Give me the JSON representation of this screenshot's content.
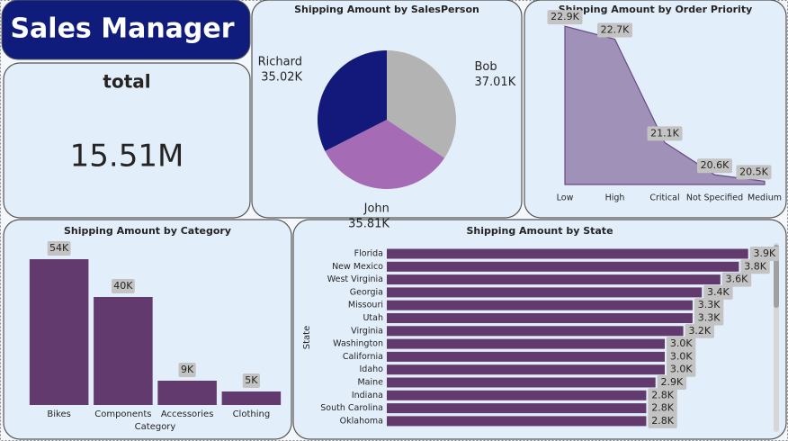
{
  "header": {
    "title": "Sales Manager"
  },
  "kpi": {
    "label": "total",
    "value": "15.51M"
  },
  "chart_data": [
    {
      "type": "pie",
      "title": "Shipping Amount by SalesPerson",
      "categories": [
        "Bob",
        "John",
        "Richard"
      ],
      "values": [
        37.01,
        35.81,
        35.02
      ],
      "value_labels": [
        "37.01K",
        "35.81K",
        "35.02K"
      ],
      "colors": [
        "#b3b3b3",
        "#a66bb5",
        "#12197a"
      ]
    },
    {
      "type": "area",
      "title": "Shipping Amount by Order Priority",
      "categories": [
        "Low",
        "High",
        "Critical",
        "Not Specified",
        "Medium"
      ],
      "values": [
        22.9,
        22.7,
        21.1,
        20.6,
        20.5
      ],
      "value_labels": [
        "22.9K",
        "22.7K",
        "21.1K",
        "20.6K",
        "20.5K"
      ],
      "color": "#9b8bb4",
      "ylim": [
        20.45,
        23.0
      ]
    },
    {
      "type": "bar",
      "title": "Shipping Amount by Category",
      "xlabel": "Category",
      "categories": [
        "Bikes",
        "Components",
        "Accessories",
        "Clothing"
      ],
      "values": [
        54,
        40,
        9,
        5
      ],
      "value_labels": [
        "54K",
        "40K",
        "9K",
        "5K"
      ],
      "color": "#633a6e",
      "ylim": [
        0,
        60
      ]
    },
    {
      "type": "hbar",
      "title": "Shipping Amount by State",
      "ylabel": "State",
      "categories": [
        "Florida",
        "New Mexico",
        "West Virginia",
        "Georgia",
        "Missouri",
        "Utah",
        "Virginia",
        "Washington",
        "California",
        "Idaho",
        "Maine",
        "Indiana",
        "South Carolina",
        "Oklahoma"
      ],
      "values": [
        3.9,
        3.8,
        3.6,
        3.4,
        3.3,
        3.3,
        3.2,
        3.0,
        3.0,
        3.0,
        2.9,
        2.8,
        2.8,
        2.8
      ],
      "value_labels": [
        "3.9K",
        "3.8K",
        "3.6K",
        "3.4K",
        "3.3K",
        "3.3K",
        "3.2K",
        "3.0K",
        "3.0K",
        "3.0K",
        "2.9K",
        "2.8K",
        "2.8K",
        "2.8K"
      ],
      "color": "#633a6e",
      "xlim": [
        0,
        4
      ]
    }
  ]
}
